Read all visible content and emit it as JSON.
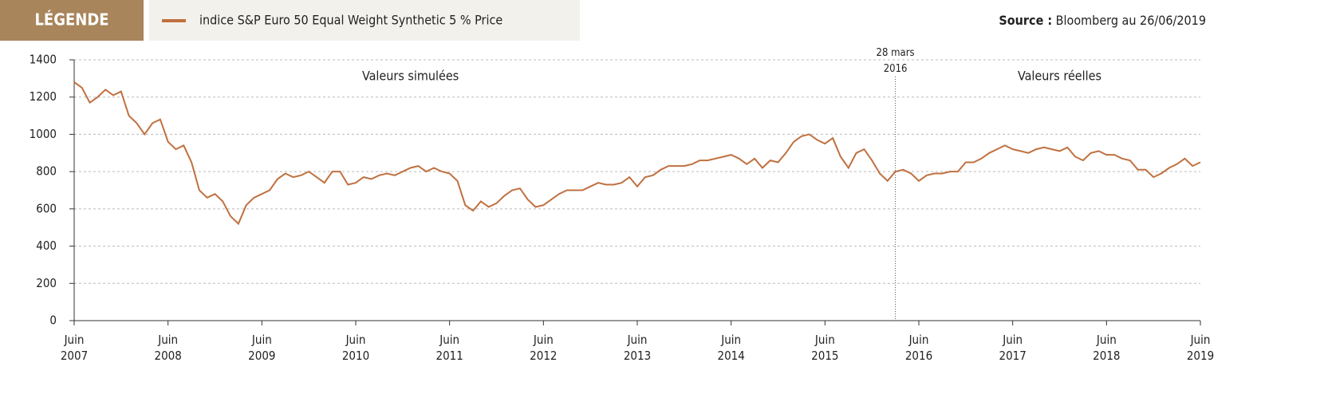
{
  "legend_title": "LÉGENDE",
  "source": {
    "label": "Source :",
    "text": "Bloomberg au 26/06/2019"
  },
  "chart_data": {
    "type": "line",
    "x": [
      "2007-06",
      "2007-07",
      "2007-08",
      "2007-09",
      "2007-10",
      "2007-11",
      "2007-12",
      "2008-01",
      "2008-02",
      "2008-03",
      "2008-04",
      "2008-05",
      "2008-06",
      "2008-07",
      "2008-08",
      "2008-09",
      "2008-10",
      "2008-11",
      "2008-12",
      "2009-01",
      "2009-02",
      "2009-03",
      "2009-04",
      "2009-05",
      "2009-06",
      "2009-07",
      "2009-08",
      "2009-09",
      "2009-10",
      "2009-11",
      "2009-12",
      "2010-01",
      "2010-02",
      "2010-03",
      "2010-04",
      "2010-05",
      "2010-06",
      "2010-07",
      "2010-08",
      "2010-09",
      "2010-10",
      "2010-11",
      "2010-12",
      "2011-01",
      "2011-02",
      "2011-03",
      "2011-04",
      "2011-05",
      "2011-06",
      "2011-07",
      "2011-08",
      "2011-09",
      "2011-10",
      "2011-11",
      "2011-12",
      "2012-01",
      "2012-02",
      "2012-03",
      "2012-04",
      "2012-05",
      "2012-06",
      "2012-07",
      "2012-08",
      "2012-09",
      "2012-10",
      "2012-11",
      "2012-12",
      "2013-01",
      "2013-02",
      "2013-03",
      "2013-04",
      "2013-05",
      "2013-06",
      "2013-07",
      "2013-08",
      "2013-09",
      "2013-10",
      "2013-11",
      "2013-12",
      "2014-01",
      "2014-02",
      "2014-03",
      "2014-04",
      "2014-05",
      "2014-06",
      "2014-07",
      "2014-08",
      "2014-09",
      "2014-10",
      "2014-11",
      "2014-12",
      "2015-01",
      "2015-02",
      "2015-03",
      "2015-04",
      "2015-05",
      "2015-06",
      "2015-07",
      "2015-08",
      "2015-09",
      "2015-10",
      "2015-11",
      "2015-12",
      "2016-01",
      "2016-02",
      "2016-03",
      "2016-04",
      "2016-05",
      "2016-06",
      "2016-07",
      "2016-08",
      "2016-09",
      "2016-10",
      "2016-11",
      "2016-12",
      "2017-01",
      "2017-02",
      "2017-03",
      "2017-04",
      "2017-05",
      "2017-06",
      "2017-07",
      "2017-08",
      "2017-09",
      "2017-10",
      "2017-11",
      "2017-12",
      "2018-01",
      "2018-02",
      "2018-03",
      "2018-04",
      "2018-05",
      "2018-06",
      "2018-07",
      "2018-08",
      "2018-09",
      "2018-10",
      "2018-11",
      "2018-12",
      "2019-01",
      "2019-02",
      "2019-03",
      "2019-04",
      "2019-05",
      "2019-06"
    ],
    "series": [
      {
        "name": "indice S&P Euro 50 Equal Weight Synthetic 5 % Price",
        "color": "#c0703f",
        "values": [
          1280,
          1250,
          1170,
          1200,
          1240,
          1210,
          1230,
          1100,
          1060,
          1000,
          1060,
          1080,
          960,
          920,
          940,
          850,
          700,
          660,
          680,
          640,
          560,
          520,
          620,
          660,
          680,
          700,
          760,
          790,
          770,
          780,
          800,
          770,
          740,
          800,
          800,
          730,
          740,
          770,
          760,
          780,
          790,
          780,
          800,
          820,
          830,
          800,
          820,
          800,
          790,
          750,
          620,
          590,
          640,
          610,
          630,
          670,
          700,
          710,
          650,
          610,
          620,
          650,
          680,
          700,
          700,
          700,
          720,
          740,
          730,
          730,
          740,
          770,
          720,
          770,
          780,
          810,
          830,
          830,
          830,
          840,
          860,
          860,
          870,
          880,
          890,
          870,
          840,
          870,
          820,
          860,
          850,
          900,
          960,
          990,
          1000,
          970,
          950,
          980,
          880,
          820,
          900,
          920,
          860,
          790,
          750,
          800,
          810,
          790,
          750,
          780,
          790,
          790,
          800,
          800,
          850,
          850,
          870,
          900,
          920,
          940,
          920,
          910,
          900,
          920,
          930,
          920,
          910,
          930,
          880,
          860,
          900,
          910,
          890,
          890,
          870,
          860,
          810,
          810,
          770,
          790,
          820,
          840,
          870,
          830,
          850
        ]
      }
    ],
    "xlim": [
      "2007-06",
      "2019-06"
    ],
    "xticks": [
      {
        "value": "2007-06",
        "label": "Juin 2007"
      },
      {
        "value": "2008-06",
        "label": "Juin 2008"
      },
      {
        "value": "2009-06",
        "label": "Juin 2009"
      },
      {
        "value": "2010-06",
        "label": "Juin 2010"
      },
      {
        "value": "2011-06",
        "label": "Juin 2011"
      },
      {
        "value": "2012-06",
        "label": "Juin 2012"
      },
      {
        "value": "2013-06",
        "label": "Juin 2013"
      },
      {
        "value": "2014-06",
        "label": "Juin 2014"
      },
      {
        "value": "2015-06",
        "label": "Juin 2015"
      },
      {
        "value": "2016-06",
        "label": "Juin 2016"
      },
      {
        "value": "2017-06",
        "label": "Juin 2017"
      },
      {
        "value": "2018-06",
        "label": "Juin 2018"
      },
      {
        "value": "2019-06",
        "label": "Juin 2019"
      }
    ],
    "ylim": [
      0,
      1400
    ],
    "yticks": [
      0,
      200,
      400,
      600,
      800,
      1000,
      1200,
      1400
    ],
    "grid": true,
    "annotations": [
      {
        "text": "Valeurs simulées",
        "x": "2011-01"
      },
      {
        "text": "Valeurs réelles",
        "x": "2017-12"
      },
      {
        "text": "28 mars 2016",
        "x": "2016-03"
      }
    ]
  }
}
